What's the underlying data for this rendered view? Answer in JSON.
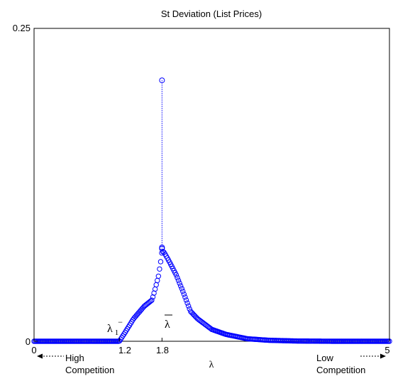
{
  "chart_data": {
    "type": "scatter",
    "title": "St Deviation (List Prices)",
    "xlabel": "λ",
    "ylabel": "",
    "xlim": [
      0,
      5
    ],
    "ylim": [
      0,
      0.25
    ],
    "x_tick_labels": [
      "0",
      "1.2",
      "1.8",
      "5"
    ],
    "x_ticks": [
      0,
      1.2,
      1.8,
      5
    ],
    "y_tick_labels": [
      "0",
      "0.25"
    ],
    "y_ticks": [
      0,
      0.25
    ],
    "grid": false,
    "marker": "open-circle",
    "color": "#0000ff",
    "annotations": {
      "lambda1": "λ",
      "lambda1_sub": "1",
      "lambda1_sup": "−",
      "lambda_bar": "λ",
      "high_line1": "High",
      "high_line2": "Competition",
      "low_line1": "Low",
      "low_line2": "Competition"
    },
    "spike": {
      "x": 1.8,
      "y_peak": 0.2085,
      "y_base": 0.073
    },
    "curve_knots": [
      [
        0.0,
        0.0
      ],
      [
        1.2,
        0.0
      ],
      [
        1.28,
        0.007
      ],
      [
        1.4,
        0.018
      ],
      [
        1.55,
        0.028
      ],
      [
        1.66,
        0.033
      ],
      [
        1.7,
        0.041
      ],
      [
        1.75,
        0.052
      ],
      [
        1.78,
        0.063
      ],
      [
        1.8,
        0.072
      ],
      [
        1.83,
        0.071
      ],
      [
        1.9,
        0.064
      ],
      [
        2.0,
        0.053
      ],
      [
        2.1,
        0.039
      ],
      [
        2.2,
        0.024
      ],
      [
        2.3,
        0.018
      ],
      [
        2.5,
        0.0095
      ],
      [
        2.7,
        0.0055
      ],
      [
        3.0,
        0.002
      ],
      [
        3.3,
        0.0008
      ],
      [
        3.7,
        0.0002
      ],
      [
        4.2,
        0.0
      ],
      [
        5.0,
        0.0
      ]
    ]
  }
}
